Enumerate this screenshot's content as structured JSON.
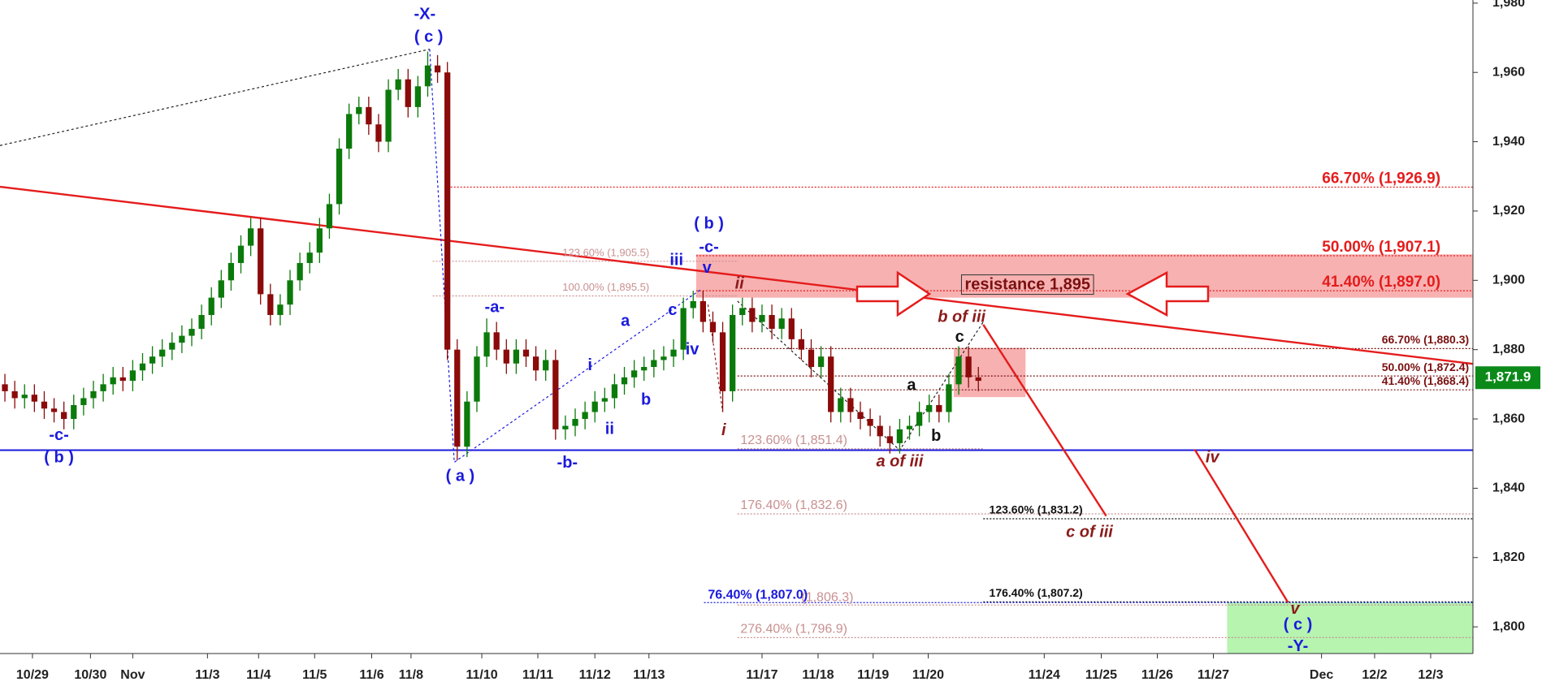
{
  "chart_data": {
    "type": "candlestick",
    "up_color": "#0b7a0b",
    "down_color": "#8b0a0a",
    "xlim": [
      0,
      149.8
    ],
    "ylim": [
      1792.3,
      1980.9
    ],
    "yticks": [
      {
        "value": 1800,
        "label": "1,800"
      },
      {
        "value": 1820,
        "label": "1,820"
      },
      {
        "value": 1840,
        "label": "1,840"
      },
      {
        "value": 1860,
        "label": "1,860"
      },
      {
        "value": 1880,
        "label": "1,880"
      },
      {
        "value": 1900,
        "label": "1,900"
      },
      {
        "value": 1920,
        "label": "1,920"
      },
      {
        "value": 1940,
        "label": "1,940"
      },
      {
        "value": 1960,
        "label": "1,960"
      },
      {
        "value": 1980,
        "label": "1,980"
      }
    ],
    "xticks": [
      {
        "value": 3.3,
        "label": "10/29"
      },
      {
        "value": 9.2,
        "label": "10/30"
      },
      {
        "value": 13.5,
        "label": "Nov"
      },
      {
        "value": 21.1,
        "label": "11/3"
      },
      {
        "value": 26.3,
        "label": "11/4"
      },
      {
        "value": 32,
        "label": "11/5"
      },
      {
        "value": 37.8,
        "label": "11/6"
      },
      {
        "value": 41.8,
        "label": "11/8"
      },
      {
        "value": 49,
        "label": "11/10"
      },
      {
        "value": 54.7,
        "label": "11/11"
      },
      {
        "value": 60.5,
        "label": "11/12"
      },
      {
        "value": 66,
        "label": "11/13"
      },
      {
        "value": 77.5,
        "label": "11/17"
      },
      {
        "value": 83.2,
        "label": "11/18"
      },
      {
        "value": 88.8,
        "label": "11/19"
      },
      {
        "value": 94.4,
        "label": "11/20"
      },
      {
        "value": 106.2,
        "label": "11/24"
      },
      {
        "value": 112,
        "label": "11/25"
      },
      {
        "value": 117.7,
        "label": "11/26"
      },
      {
        "value": 123.4,
        "label": "11/27"
      },
      {
        "value": 134.4,
        "label": "Dec"
      },
      {
        "value": 139.8,
        "label": "12/2"
      },
      {
        "value": 145.5,
        "label": "12/3"
      }
    ],
    "open": [
      1870,
      1868,
      1866,
      1867,
      1865,
      1863,
      1862,
      1860,
      1864,
      1866,
      1868,
      1870,
      1872,
      1871,
      1874,
      1876,
      1878,
      1880,
      1882,
      1884,
      1886,
      1890,
      1895,
      1900,
      1905,
      1910,
      1915,
      1896,
      1890,
      1893,
      1900,
      1905,
      1908,
      1915,
      1922,
      1938,
      1948,
      1950,
      1945,
      1940,
      1955,
      1958,
      1950,
      1956,
      1962,
      1960,
      1880,
      1852,
      1865,
      1878,
      1885,
      1880,
      1876,
      1880,
      1878,
      1874,
      1877,
      1857,
      1858,
      1860,
      1862,
      1865,
      1866,
      1870,
      1872,
      1874,
      1875,
      1877,
      1878,
      1880,
      1892,
      1894,
      1888,
      1885,
      1868,
      1890,
      1892,
      1888,
      1890,
      1886,
      1889,
      1883,
      1880,
      1875,
      1878,
      1862,
      1866,
      1862,
      1860,
      1858,
      1855,
      1853,
      1857,
      1858,
      1862,
      1864,
      1862,
      1870,
      1878,
      1872
    ],
    "high": [
      1873,
      1871,
      1870,
      1870,
      1868,
      1866,
      1865,
      1867,
      1869,
      1871,
      1873,
      1875,
      1875,
      1877,
      1879,
      1881,
      1883,
      1885,
      1887,
      1889,
      1893,
      1898,
      1903,
      1908,
      1913,
      1918,
      1918,
      1899,
      1896,
      1903,
      1908,
      1911,
      1918,
      1925,
      1941,
      1951,
      1953,
      1953,
      1948,
      1958,
      1961,
      1961,
      1959,
      1966,
      1965,
      1963,
      1883,
      1868,
      1881,
      1889,
      1888,
      1883,
      1883,
      1883,
      1881,
      1880,
      1880,
      1861,
      1863,
      1865,
      1868,
      1869,
      1873,
      1875,
      1877,
      1878,
      1880,
      1881,
      1883,
      1895,
      1897,
      1897,
      1891,
      1888,
      1893,
      1895,
      1895,
      1893,
      1893,
      1892,
      1892,
      1886,
      1883,
      1881,
      1881,
      1869,
      1869,
      1865,
      1863,
      1861,
      1858,
      1860,
      1861,
      1865,
      1867,
      1867,
      1873,
      1881,
      1881,
      1875
    ],
    "low": [
      1865,
      1863,
      1863,
      1862,
      1860,
      1859,
      1857,
      1857,
      1861,
      1863,
      1865,
      1867,
      1868,
      1868,
      1871,
      1873,
      1875,
      1877,
      1879,
      1881,
      1883,
      1887,
      1892,
      1897,
      1902,
      1907,
      1893,
      1887,
      1887,
      1890,
      1897,
      1902,
      1905,
      1912,
      1919,
      1935,
      1945,
      1942,
      1937,
      1937,
      1952,
      1947,
      1947,
      1953,
      1957,
      1877,
      1848,
      1849,
      1862,
      1875,
      1877,
      1873,
      1873,
      1875,
      1871,
      1871,
      1854,
      1854,
      1855,
      1857,
      1859,
      1862,
      1863,
      1867,
      1869,
      1871,
      1872,
      1874,
      1875,
      1877,
      1889,
      1885,
      1882,
      1862,
      1865,
      1887,
      1885,
      1885,
      1883,
      1883,
      1880,
      1877,
      1872,
      1872,
      1859,
      1859,
      1859,
      1857,
      1855,
      1852,
      1850,
      1850,
      1854,
      1855,
      1859,
      1859,
      1859,
      1867,
      1869,
      1868
    ],
    "close": [
      1868,
      1866,
      1867,
      1865,
      1863,
      1862,
      1860,
      1864,
      1866,
      1868,
      1870,
      1872,
      1871,
      1874,
      1876,
      1878,
      1880,
      1882,
      1884,
      1886,
      1890,
      1895,
      1900,
      1905,
      1910,
      1915,
      1896,
      1890,
      1893,
      1900,
      1905,
      1908,
      1915,
      1922,
      1938,
      1948,
      1950,
      1945,
      1940,
      1955,
      1958,
      1950,
      1956,
      1962,
      1960,
      1880,
      1852,
      1865,
      1878,
      1885,
      1880,
      1876,
      1880,
      1878,
      1874,
      1877,
      1857,
      1858,
      1860,
      1862,
      1865,
      1866,
      1870,
      1872,
      1874,
      1875,
      1877,
      1878,
      1880,
      1892,
      1894,
      1888,
      1885,
      1868,
      1890,
      1892,
      1888,
      1890,
      1886,
      1889,
      1883,
      1880,
      1875,
      1878,
      1862,
      1866,
      1862,
      1860,
      1858,
      1855,
      1853,
      1857,
      1858,
      1862,
      1864,
      1862,
      1870,
      1878,
      1872,
      1871
    ],
    "last_price": {
      "value": 1871.9,
      "label": "1,871.9",
      "color": "#0b8a1a"
    },
    "zones": [
      {
        "x0": 70.8,
        "x1": 149.8,
        "y0": 1895,
        "y1": 1907.5,
        "color": "#f6a3a3"
      },
      {
        "x0": 97,
        "x1": 104.3,
        "y0": 1866.3,
        "y1": 1880.5,
        "color": "#f6a3a3"
      },
      {
        "x0": 124.8,
        "x1": 149.8,
        "y0": 1792.3,
        "y1": 1807,
        "color": "#a9f2a2"
      }
    ],
    "levels": [
      {
        "value": 1926.9,
        "label": "66.70% (1,926.9)",
        "color": "#e51c1c",
        "x0": 45.5,
        "x1": 149.8
      },
      {
        "value": 1907.1,
        "label": "50.00% (1,907.1)",
        "color": "#e51c1c",
        "x0": 70.8,
        "x1": 149.8
      },
      {
        "value": 1897.0,
        "label": "41.40% (1,897.0)",
        "color": "#e51c1c",
        "x0": 70.8,
        "x1": 149.8
      },
      {
        "value": 1905.5,
        "label": "123.60% (1,905.5)",
        "color": "#c99090",
        "x0": 44,
        "x1": 75
      },
      {
        "value": 1895.5,
        "label": "100.00% (1,895.5)",
        "color": "#c99090",
        "x0": 44,
        "x1": 75
      },
      {
        "value": 1880.3,
        "label": "66.70% (1,880.3)",
        "color": "#7a1010",
        "x0": 75,
        "x1": 149.8
      },
      {
        "value": 1872.4,
        "label": "50.00% (1,872.4)",
        "color": "#7a1010",
        "x0": 75,
        "x1": 149.8
      },
      {
        "value": 1868.4,
        "label": "41.40% (1,868.4)",
        "color": "#7a1010",
        "x0": 75,
        "x1": 149.8
      },
      {
        "value": 1851.4,
        "label": "123.60% (1,851.4)",
        "color": "#c99090",
        "x0": 75,
        "x1": 100
      },
      {
        "value": 1832.6,
        "label": "176.40% (1,832.6)",
        "color": "#c99090",
        "x0": 75,
        "x1": 149.8
      },
      {
        "value": 1831.2,
        "label": "123.60% (1,831.2)",
        "color": "#111111",
        "x0": 100,
        "x1": 149.8
      },
      {
        "value": 1807.2,
        "label": "176.40% (1,807.2)",
        "color": "#111111",
        "x0": 100,
        "x1": 149.8
      },
      {
        "value": 1807.0,
        "label": "76.40% (1,807.0)",
        "color": "#1a1adc",
        "x0": 71.6,
        "x1": 149.8
      },
      {
        "value": 1806.3,
        "label": "(1,806.3)",
        "color": "#c99090",
        "x0": 75,
        "x1": 149.8
      },
      {
        "value": 1796.9,
        "label": "276.40% (1,796.9)",
        "color": "#c99090",
        "x0": 75,
        "x1": 149.8
      }
    ],
    "support": {
      "value": 1851,
      "color": "#1a1adc"
    },
    "trendlines": [
      {
        "points": [
          [
            0,
            1927
          ],
          [
            149.8,
            1875.9
          ]
        ],
        "color": "#e51c1c",
        "dashed": false
      },
      {
        "points": [
          [
            0,
            1938.9
          ],
          [
            43.7,
            1966.7
          ]
        ],
        "color": "#222222",
        "dashed": true
      },
      {
        "points": [
          [
            43.7,
            1966.7
          ],
          [
            46.2,
            1847.5
          ],
          [
            71.2,
            1897.2
          ]
        ],
        "color": "#1a1adc",
        "dashed": true
      },
      {
        "points": [
          [
            75,
            1894
          ],
          [
            91.5,
            1851
          ],
          [
            100,
            1888
          ]
        ],
        "color": "#222222",
        "dashed": true
      },
      {
        "points": [
          [
            72,
            1893
          ],
          [
            73.5,
            1862
          ]
        ],
        "color": "#8b1a1a",
        "dashed": true
      },
      {
        "points": [
          [
            100,
            1887.2
          ],
          [
            112.5,
            1832
          ]
        ],
        "color": "#e51c1c",
        "dashed": false
      },
      {
        "points": [
          [
            121.5,
            1851.2
          ],
          [
            131,
            1807
          ]
        ],
        "color": "#e51c1c",
        "dashed": false
      }
    ],
    "resistance": {
      "text": "resistance 1,895",
      "x": 104.5,
      "y": 1898.6
    },
    "annotations": [
      {
        "text": "-X-",
        "x": 43.2,
        "y": 1976.6,
        "color": "#1a1adc",
        "italic": false
      },
      {
        "text": "( c )",
        "x": 43.6,
        "y": 1970.1,
        "color": "#1a1adc",
        "italic": false
      },
      {
        "text": "-c-",
        "x": 6,
        "y": 1855.2,
        "color": "#1a1adc",
        "italic": false
      },
      {
        "text": "( b )",
        "x": 6,
        "y": 1848.7,
        "color": "#1a1adc",
        "italic": false
      },
      {
        "text": "( a )",
        "x": 46.8,
        "y": 1843.3,
        "color": "#1a1adc",
        "italic": false
      },
      {
        "text": "-a-",
        "x": 50.3,
        "y": 1892.1,
        "color": "#1a1adc",
        "italic": false
      },
      {
        "text": "-b-",
        "x": 57.7,
        "y": 1847.2,
        "color": "#1a1adc",
        "italic": false
      },
      {
        "text": "a",
        "x": 63.6,
        "y": 1888.1,
        "color": "#1a1adc",
        "italic": false
      },
      {
        "text": "i",
        "x": 60,
        "y": 1875.3,
        "color": "#1a1adc",
        "italic": false
      },
      {
        "text": "b",
        "x": 65.7,
        "y": 1865.4,
        "color": "#1a1adc",
        "italic": false
      },
      {
        "text": "ii",
        "x": 62,
        "y": 1856.9,
        "color": "#1a1adc",
        "italic": false
      },
      {
        "text": "c",
        "x": 68.4,
        "y": 1891.2,
        "color": "#1a1adc",
        "italic": false
      },
      {
        "text": "iii",
        "x": 68.8,
        "y": 1905.7,
        "color": "#1a1adc",
        "italic": false
      },
      {
        "text": "iv",
        "x": 70.4,
        "y": 1879.9,
        "color": "#1a1adc",
        "italic": false
      },
      {
        "text": "( b )",
        "x": 72.1,
        "y": 1916.2,
        "color": "#1a1adc",
        "italic": false
      },
      {
        "text": "-c-",
        "x": 72.1,
        "y": 1909.4,
        "color": "#1a1adc",
        "italic": false
      },
      {
        "text": "v",
        "x": 71.9,
        "y": 1903.4,
        "color": "#1a1adc",
        "italic": false
      },
      {
        "text": "ii",
        "x": 75.2,
        "y": 1898.9,
        "color": "#8b1a1a",
        "italic": true
      },
      {
        "text": "i",
        "x": 73.6,
        "y": 1856.6,
        "color": "#8b1a1a",
        "italic": true
      },
      {
        "text": "a of iii",
        "x": 91.5,
        "y": 1847.5,
        "color": "#8b1a1a",
        "italic": true
      },
      {
        "text": "a",
        "x": 92.7,
        "y": 1869.6,
        "color": "#111111",
        "italic": false
      },
      {
        "text": "b",
        "x": 95.2,
        "y": 1854.9,
        "color": "#111111",
        "italic": false
      },
      {
        "text": "c",
        "x": 97.6,
        "y": 1883.5,
        "color": "#111111",
        "italic": false
      },
      {
        "text": "b of iii",
        "x": 97.8,
        "y": 1889.2,
        "color": "#8b1a1a",
        "italic": true
      },
      {
        "text": "c of iii",
        "x": 110.8,
        "y": 1827.1,
        "color": "#8b1a1a",
        "italic": true
      },
      {
        "text": "iv",
        "x": 123.3,
        "y": 1848.7,
        "color": "#8b1a1a",
        "italic": true
      },
      {
        "text": "v",
        "x": 131.7,
        "y": 1805,
        "color": "#8b1a1a",
        "italic": true
      },
      {
        "text": "( c )",
        "x": 132,
        "y": 1800.4,
        "color": "#1a1adc",
        "italic": false
      },
      {
        "text": "-Y-",
        "x": 132,
        "y": 1794.2,
        "color": "#1a1adc",
        "italic": false
      }
    ]
  }
}
